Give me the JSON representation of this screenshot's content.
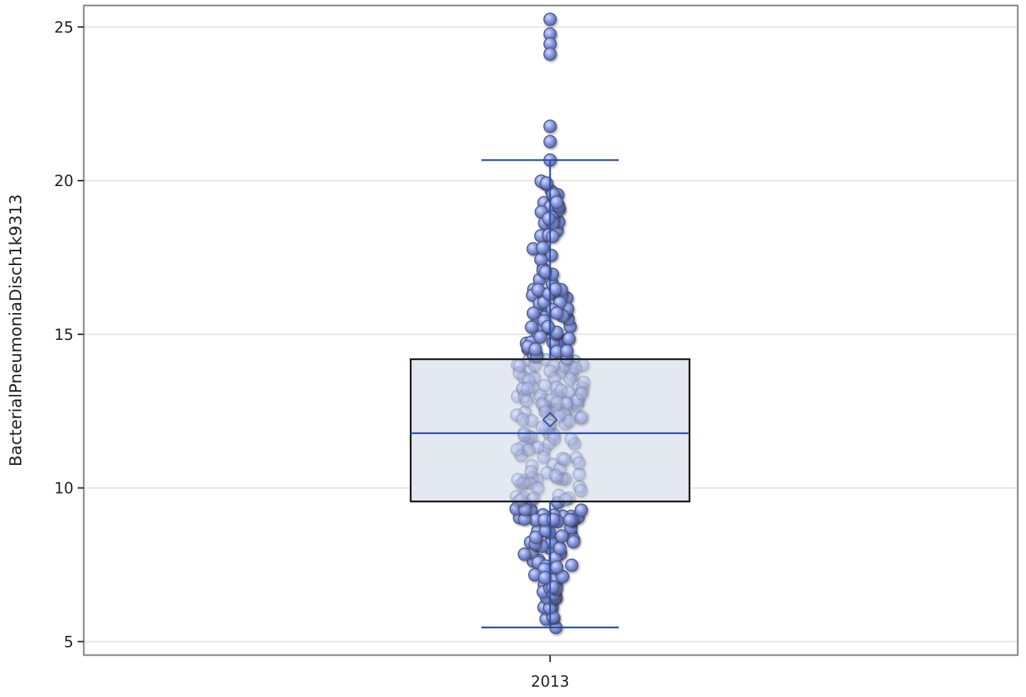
{
  "chart_data": {
    "type": "box",
    "ylabel": "BacterialPneumoniaDisch1k9313",
    "xlabel": "",
    "categories": [
      "2013"
    ],
    "yticks": [
      5,
      10,
      15,
      20,
      25
    ],
    "ylim": [
      4.56,
      25.7
    ],
    "grid": "horizontal",
    "box": {
      "category": "2013",
      "q1": 9.56,
      "median": 11.78,
      "q3": 14.19,
      "mean": 12.22,
      "whisker_low": 5.46,
      "whisker_high": 20.67
    },
    "outliers": [
      25.25,
      24.77,
      24.45,
      24.12,
      21.77,
      21.27
    ],
    "colors": {
      "box_fill": "#e3e8f1",
      "box_edge": "#111111",
      "whisker": "#2a4ea6",
      "median": "#2a4ea6",
      "marker": "#8b9ce4",
      "marker_edge": "#4f5a86",
      "grid": "#e4e4e4",
      "frame": "#8a8a8a"
    }
  }
}
